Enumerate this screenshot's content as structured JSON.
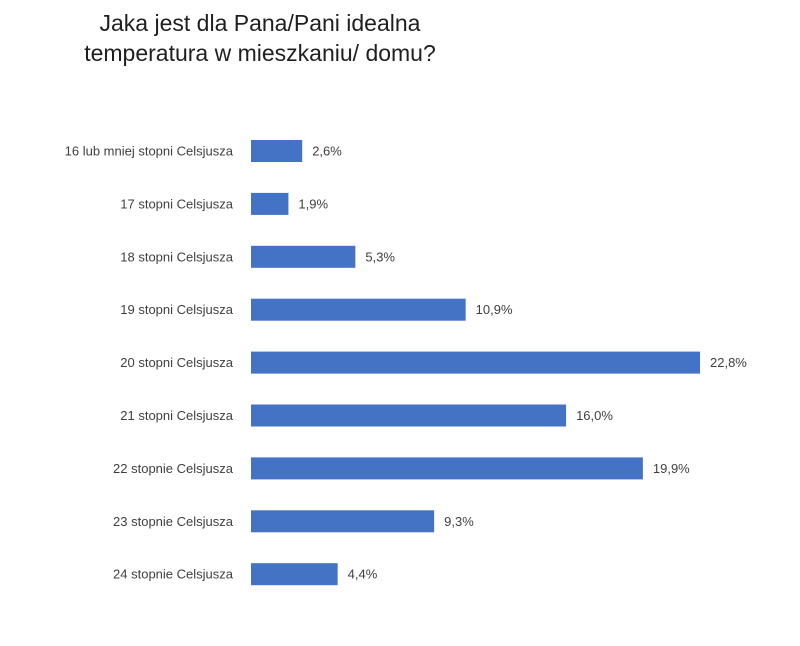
{
  "chart_data": {
    "type": "bar",
    "orientation": "horizontal",
    "title_lines": [
      "Jaka jest dla Pana/Pani idealna",
      "temperatura w mieszkaniu/ domu?"
    ],
    "categories": [
      "16 lub mniej stopni Celsjusza",
      "17 stopni Celsjusza",
      "18 stopni Celsjusza",
      "19 stopni Celsjusza",
      "20 stopni Celsjusza",
      "21 stopni Celsjusza",
      "22 stopnie Celsjusza",
      "23 stopnie Celsjusza",
      "24 stopnie Celsjusza"
    ],
    "values": [
      2.6,
      1.9,
      5.3,
      10.9,
      22.8,
      16.0,
      19.9,
      9.3,
      4.4
    ],
    "value_labels": [
      "2,6%",
      "1,9%",
      "5,3%",
      "10,9%",
      "22,8%",
      "16,0%",
      "19,9%",
      "9,3%",
      "4,4%"
    ],
    "bar_color": "#4472C4",
    "grid": false,
    "legend": "none"
  }
}
